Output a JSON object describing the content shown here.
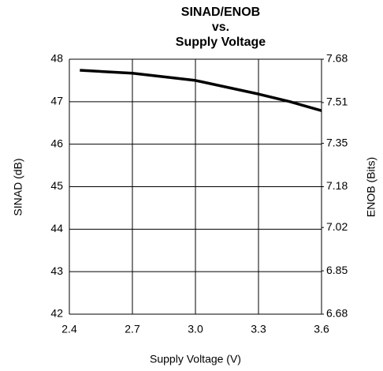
{
  "chart_data": {
    "type": "line",
    "title": [
      "SINAD/ENOB",
      "vs.",
      "Supply Voltage"
    ],
    "xlabel": "Supply Voltage (V)",
    "ylabel": "SINAD (dB)",
    "y2label": "ENOB (Bits)",
    "x": [
      2.45,
      2.7,
      3.0,
      3.3,
      3.45,
      3.6
    ],
    "values": [
      47.74,
      47.67,
      47.5,
      47.18,
      47.0,
      46.79
    ],
    "color": "#000000",
    "xlim": [
      2.4,
      3.6
    ],
    "xticks": [
      2.4,
      2.7,
      {
        "value": 3.0,
        "label": "3.0"
      },
      3.3,
      3.6
    ],
    "ylim": [
      42,
      48
    ],
    "yticks": [
      42,
      43,
      44,
      45,
      46,
      47,
      48
    ],
    "y2lim": [
      6.68,
      7.68
    ],
    "y2ticks": [
      6.68,
      6.85,
      7.02,
      7.18,
      7.35,
      7.51,
      7.68
    ],
    "grid": true
  }
}
